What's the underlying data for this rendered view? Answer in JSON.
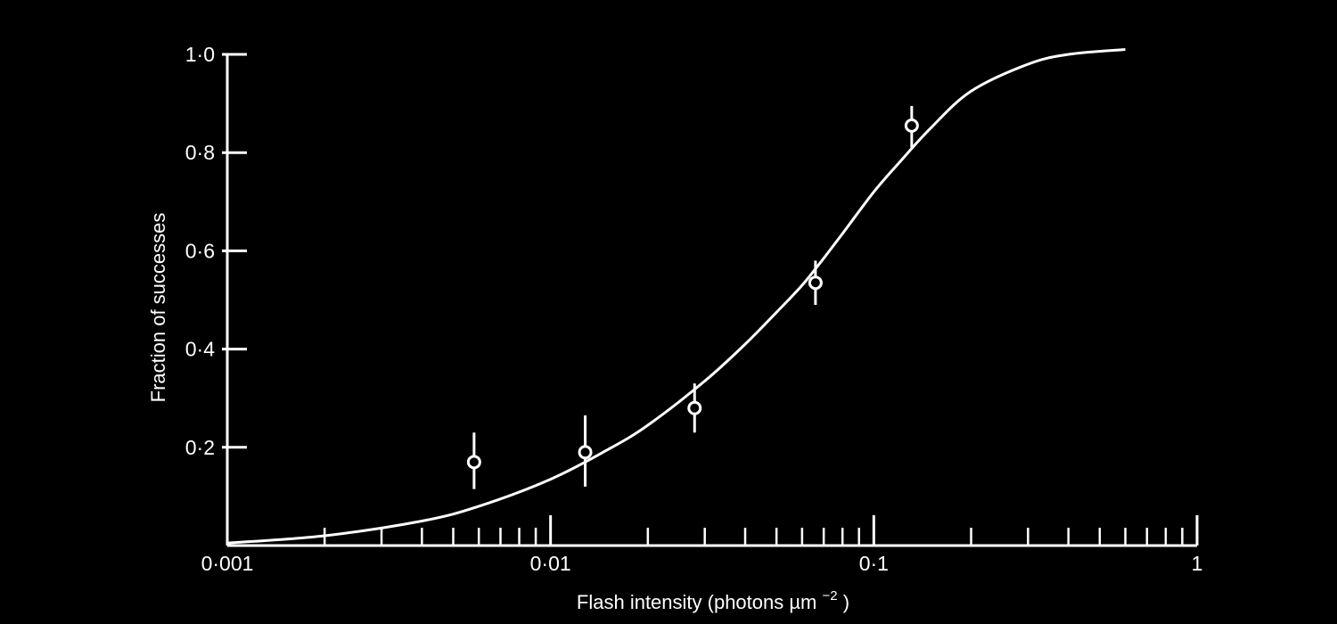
{
  "chart_data": {
    "type": "scatter",
    "title": "",
    "xlabel": "Flash intensity (photons",
    "xlabel_unit": "µm",
    "xlabel_unit_exponent": "−2",
    "xlabel_close": ")",
    "ylabel": "Fraction of successes",
    "x_scale": "log",
    "xlim": [
      0.001,
      1
    ],
    "ylim": [
      0,
      1.0
    ],
    "grid": false,
    "x_ticks": [
      {
        "value": 0.001,
        "label": "0·001"
      },
      {
        "value": 0.01,
        "label": "0·01"
      },
      {
        "value": 0.1,
        "label": "0·1"
      },
      {
        "value": 1,
        "label": "1"
      }
    ],
    "y_ticks": [
      {
        "value": 0.2,
        "label": "0·2"
      },
      {
        "value": 0.4,
        "label": "0·4"
      },
      {
        "value": 0.6,
        "label": "0·6"
      },
      {
        "value": 0.8,
        "label": "0·8"
      },
      {
        "value": 1.0,
        "label": "1·0"
      }
    ],
    "points": [
      {
        "x": 0.0058,
        "y": 0.17,
        "err_low": 0.115,
        "err_high": 0.23
      },
      {
        "x": 0.0128,
        "y": 0.19,
        "err_low": 0.12,
        "err_high": 0.265
      },
      {
        "x": 0.0279,
        "y": 0.28,
        "err_low": 0.23,
        "err_high": 0.33
      },
      {
        "x": 0.066,
        "y": 0.535,
        "err_low": 0.49,
        "err_high": 0.58
      },
      {
        "x": 0.131,
        "y": 0.855,
        "err_low": 0.81,
        "err_high": 0.895
      }
    ],
    "curve": {
      "x": [
        0.001,
        0.002,
        0.004,
        0.006,
        0.01,
        0.015,
        0.02,
        0.03,
        0.04,
        0.05,
        0.06,
        0.07,
        0.08,
        0.1,
        0.12,
        0.15,
        0.2,
        0.3,
        0.4,
        0.6
      ],
      "y": [
        0.005,
        0.02,
        0.05,
        0.08,
        0.135,
        0.195,
        0.245,
        0.335,
        0.41,
        0.475,
        0.53,
        0.585,
        0.635,
        0.72,
        0.78,
        0.85,
        0.925,
        0.98,
        1.0,
        1.01
      ]
    }
  }
}
